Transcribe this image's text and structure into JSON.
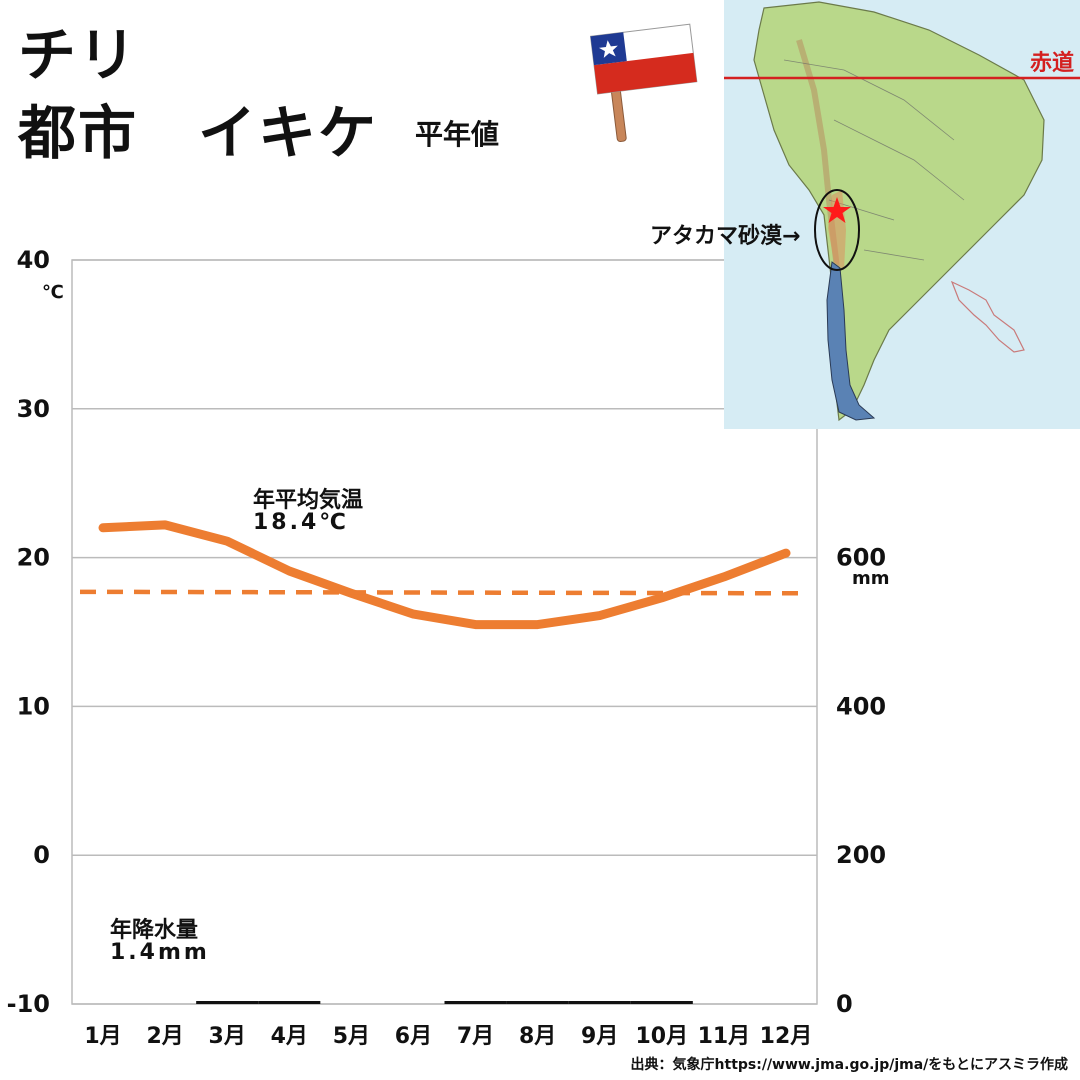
{
  "header": {
    "country": "チリ",
    "city": "都市　イキケ",
    "subtitle": "平年値"
  },
  "map": {
    "equator_label": "赤道",
    "desert_label": "アタカマ砂漠→"
  },
  "source": "出典：気象庁https://www.jma.go.jp/jma/をもとにアスミラ作成",
  "annotations": {
    "temp_label": "年平均気温",
    "temp_value": "18.4℃",
    "precip_label": "年降水量",
    "precip_value": "1.4mm"
  },
  "colors": {
    "temperature": "#ED7D31",
    "precipitation": "#111111",
    "grid": "#bbbbbb",
    "equator": "#d42020"
  },
  "chart_data": {
    "type": "line",
    "categories": [
      "1月",
      "2月",
      "3月",
      "4月",
      "5月",
      "6月",
      "7月",
      "8月",
      "9月",
      "10月",
      "11月",
      "12月"
    ],
    "y_left": {
      "unit": "℃",
      "ticks": [
        "40",
        "30",
        "20",
        "10",
        "0",
        "-10"
      ],
      "range": [
        -10,
        40
      ]
    },
    "y_right": {
      "unit": "mm",
      "ticks": [
        "600",
        "400",
        "200",
        "0"
      ],
      "range": [
        0,
        1000
      ]
    },
    "grid": true,
    "series": [
      {
        "axis": "left",
        "values": [
          22.0,
          22.2,
          21.1,
          19.1,
          17.6,
          16.2,
          15.5,
          15.5,
          16.1,
          17.3,
          18.7,
          20.3
        ]
      },
      {
        "axis": "left",
        "style": "dashed",
        "values": [
          17.7,
          17.7,
          17.7,
          17.7,
          17.7,
          17.7,
          17.6,
          17.6,
          17.6,
          17.6,
          17.6,
          17.6
        ]
      },
      {
        "axis": "right",
        "style": "bar",
        "values": [
          0,
          0,
          0.1,
          0.1,
          0,
          0,
          0.3,
          0.3,
          0.3,
          0.3,
          0,
          0
        ]
      }
    ]
  }
}
